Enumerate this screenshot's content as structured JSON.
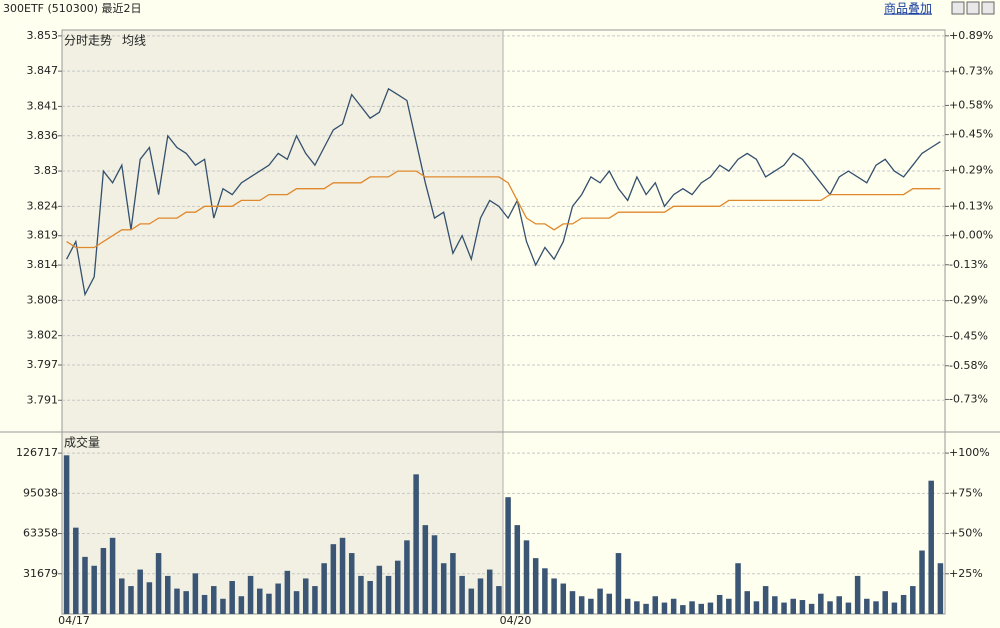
{
  "header": {
    "title": "300ETF (510300) 最近2日",
    "overlay": "商品叠加"
  },
  "chart_data": [
    {
      "type": "line",
      "legend": "top-left",
      "grid": true,
      "ylim": [
        3.7856,
        3.854
      ],
      "yticks": [
        3.853,
        3.847,
        3.841,
        3.836,
        3.83,
        3.824,
        3.819,
        3.814,
        3.808,
        3.802,
        3.797,
        3.791
      ],
      "y2lim": [
        -0.875,
        0.916
      ],
      "y2ticks": [
        {
          "value": 0.89,
          "label": "+0.89%"
        },
        {
          "value": 0.73,
          "label": "+0.73%"
        },
        {
          "value": 0.58,
          "label": "+0.58%"
        },
        {
          "value": 0.45,
          "label": "+0.45%"
        },
        {
          "value": 0.29,
          "label": "+0.29%"
        },
        {
          "value": 0.13,
          "label": "+0.13%"
        },
        {
          "value": 0,
          "label": "+0.00%"
        },
        {
          "value": -0.13,
          "label": "-0.13%"
        },
        {
          "value": -0.29,
          "label": "-0.29%"
        },
        {
          "value": -0.45,
          "label": "-0.45%"
        },
        {
          "value": -0.58,
          "label": "-0.58%"
        },
        {
          "value": -0.73,
          "label": "-0.73%"
        }
      ],
      "series": [
        {
          "name": "分时走势",
          "color": "#34506e",
          "values": [
            3.815,
            3.818,
            3.809,
            3.812,
            3.83,
            3.828,
            3.831,
            3.82,
            3.832,
            3.834,
            3.826,
            3.836,
            3.834,
            3.833,
            3.831,
            3.832,
            3.822,
            3.827,
            3.826,
            3.828,
            3.829,
            3.83,
            3.831,
            3.833,
            3.832,
            3.836,
            3.833,
            3.831,
            3.834,
            3.837,
            3.838,
            3.843,
            3.841,
            3.839,
            3.84,
            3.844,
            3.843,
            3.842,
            3.835,
            3.828,
            3.822,
            3.823,
            3.816,
            3.819,
            3.815,
            3.822,
            3.825,
            3.824,
            3.822,
            3.825,
            3.818,
            3.814,
            3.817,
            3.815,
            3.818,
            3.824,
            3.826,
            3.829,
            3.828,
            3.83,
            3.827,
            3.825,
            3.829,
            3.826,
            3.828,
            3.824,
            3.826,
            3.827,
            3.826,
            3.828,
            3.829,
            3.831,
            3.83,
            3.832,
            3.833,
            3.832,
            3.829,
            3.83,
            3.831,
            3.833,
            3.832,
            3.83,
            3.828,
            3.826,
            3.829,
            3.83,
            3.829,
            3.828,
            3.831,
            3.832,
            3.83,
            3.829,
            3.831,
            3.833,
            3.834,
            3.835
          ]
        },
        {
          "name": "均线",
          "color": "#e0882c",
          "values": [
            3.818,
            3.817,
            3.817,
            3.817,
            3.818,
            3.819,
            3.82,
            3.82,
            3.821,
            3.821,
            3.822,
            3.822,
            3.822,
            3.823,
            3.823,
            3.824,
            3.824,
            3.824,
            3.824,
            3.825,
            3.825,
            3.825,
            3.826,
            3.826,
            3.826,
            3.827,
            3.827,
            3.827,
            3.827,
            3.828,
            3.828,
            3.828,
            3.828,
            3.829,
            3.829,
            3.829,
            3.83,
            3.83,
            3.83,
            3.829,
            3.829,
            3.829,
            3.829,
            3.829,
            3.829,
            3.829,
            3.829,
            3.829,
            3.828,
            3.825,
            3.822,
            3.821,
            3.821,
            3.82,
            3.821,
            3.821,
            3.822,
            3.822,
            3.822,
            3.822,
            3.823,
            3.823,
            3.823,
            3.823,
            3.823,
            3.823,
            3.824,
            3.824,
            3.824,
            3.824,
            3.824,
            3.824,
            3.825,
            3.825,
            3.825,
            3.825,
            3.825,
            3.825,
            3.825,
            3.825,
            3.825,
            3.825,
            3.825,
            3.826,
            3.826,
            3.826,
            3.826,
            3.826,
            3.826,
            3.826,
            3.826,
            3.826,
            3.827,
            3.827,
            3.827,
            3.827
          ]
        }
      ]
    },
    {
      "type": "bar",
      "legend": "top-left",
      "grid": true,
      "categories": [
        "04/17",
        null,
        null,
        null,
        null,
        null,
        null,
        null,
        null,
        null,
        null,
        null,
        null,
        null,
        null,
        null,
        null,
        null,
        null,
        null,
        null,
        null,
        null,
        null,
        null,
        null,
        null,
        null,
        null,
        null,
        null,
        null,
        null,
        null,
        null,
        null,
        null,
        null,
        null,
        null,
        null,
        null,
        null,
        null,
        null,
        null,
        null,
        null,
        "04/20",
        null,
        null,
        null,
        null,
        null,
        null,
        null,
        null,
        null,
        null,
        null,
        null,
        null,
        null,
        null,
        null,
        null,
        null,
        null,
        null,
        null,
        null,
        null,
        null,
        null,
        null,
        null,
        null,
        null,
        null,
        null,
        null,
        null,
        null,
        null,
        null,
        null,
        null,
        null,
        null,
        null,
        null,
        null,
        null,
        null,
        null,
        null
      ],
      "ylim": [
        0,
        143350
      ],
      "yticks": [
        126717,
        95038,
        63358,
        31679
      ],
      "y2lim": [
        0,
        113.1
      ],
      "y2ticks": [
        {
          "value": 100,
          "label": "+100%"
        },
        {
          "value": 75,
          "label": "+75%"
        },
        {
          "value": 50,
          "label": "+50%"
        },
        {
          "value": 25,
          "label": "+25%"
        }
      ],
      "series": [
        {
          "name": "成交量",
          "color": "#3b5674",
          "values": [
            125000,
            68000,
            45000,
            38000,
            52000,
            60000,
            28000,
            22000,
            35000,
            25000,
            48000,
            30000,
            20000,
            18000,
            32000,
            15000,
            22000,
            12000,
            26000,
            14000,
            30000,
            20000,
            16000,
            24000,
            34000,
            18000,
            28000,
            22000,
            40000,
            55000,
            60000,
            48000,
            30000,
            26000,
            38000,
            30000,
            42000,
            58000,
            110000,
            70000,
            62000,
            40000,
            48000,
            30000,
            20000,
            28000,
            35000,
            22000,
            92000,
            70000,
            58000,
            44000,
            36000,
            28000,
            24000,
            18000,
            14000,
            12000,
            20000,
            16000,
            48000,
            12000,
            10000,
            8000,
            14000,
            9000,
            12000,
            7000,
            10000,
            8000,
            9000,
            15000,
            12000,
            40000,
            18000,
            10000,
            22000,
            14000,
            9000,
            12000,
            11000,
            8000,
            16000,
            10000,
            14000,
            9000,
            30000,
            12000,
            10000,
            18000,
            9000,
            15000,
            22000,
            50000,
            105000,
            40000
          ]
        }
      ]
    }
  ]
}
